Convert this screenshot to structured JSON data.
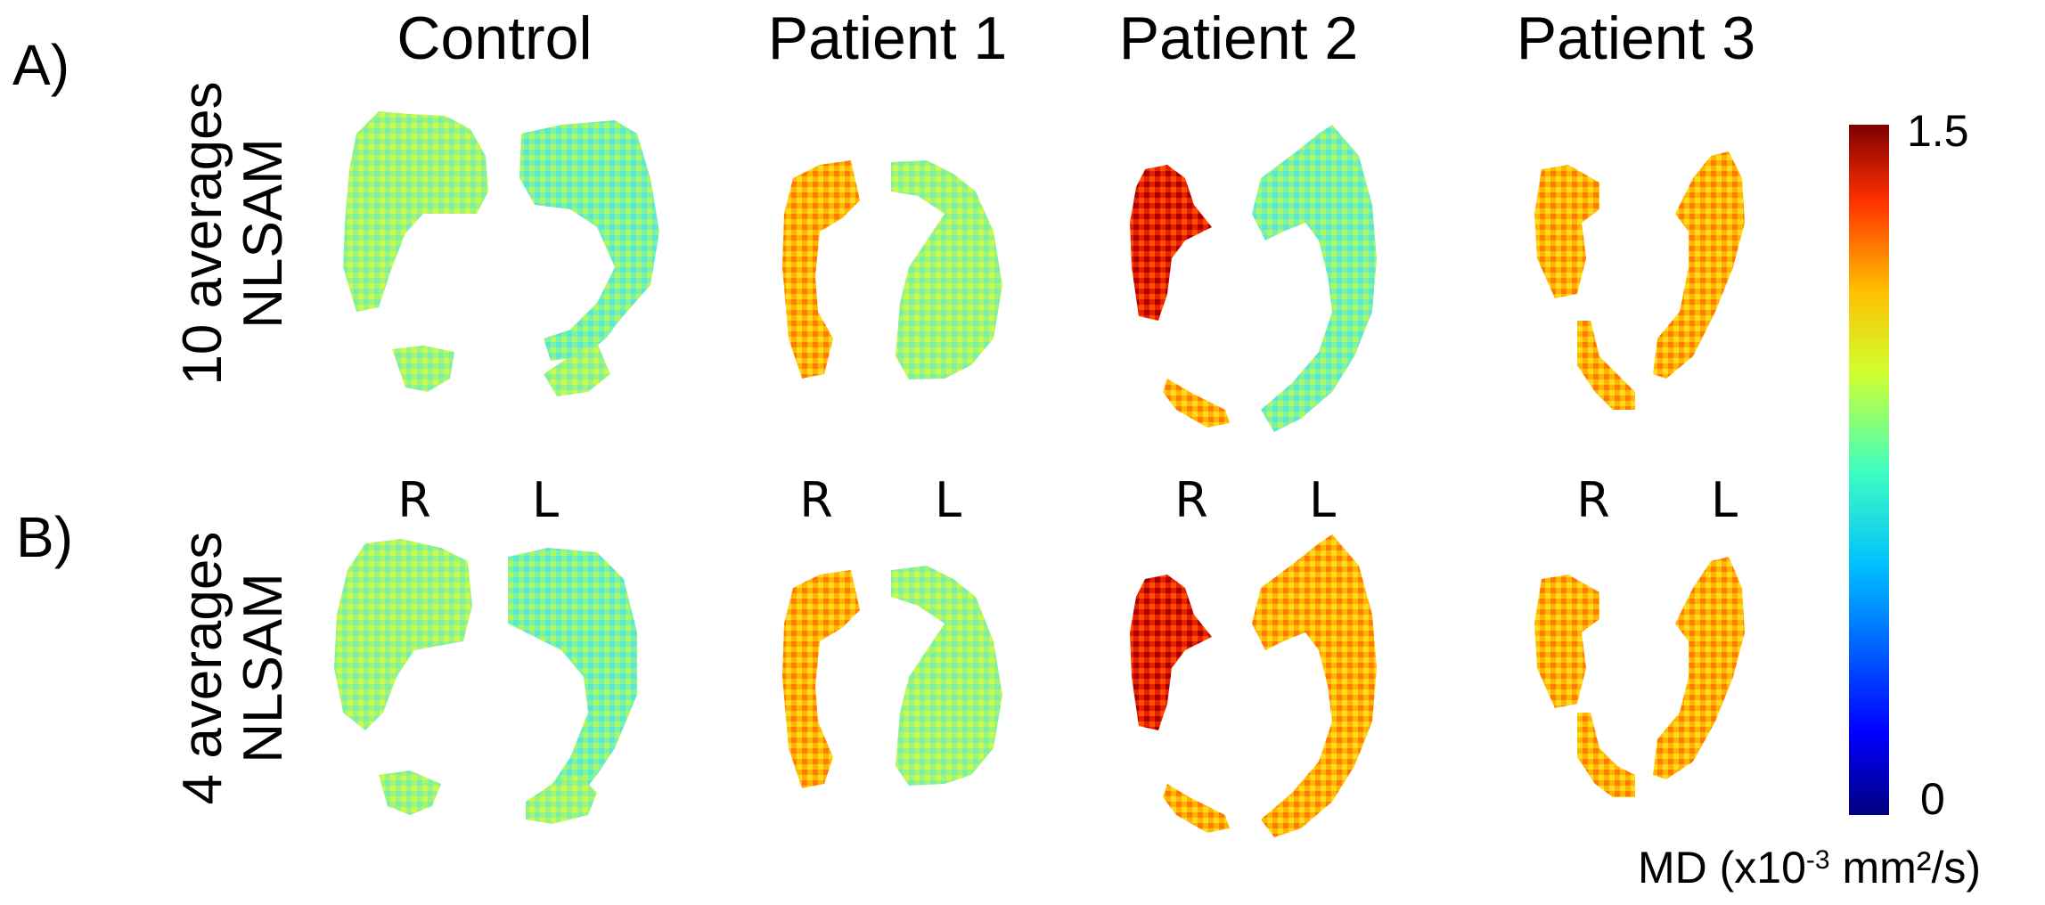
{
  "columns": [
    "Control",
    "Patient 1",
    "Patient 2",
    "Patient 3"
  ],
  "rows": [
    {
      "panel": "A)",
      "line1": "10 averages",
      "line2": "NLSAM"
    },
    {
      "panel": "B)",
      "line1": "4 averages",
      "line2": "NLSAM"
    }
  ],
  "hemisphere_labels": {
    "right": "R",
    "left": "L"
  },
  "colorbar": {
    "max_label": "1.5",
    "min_label": "0",
    "unit_prefix": "MD (x10",
    "unit_exp": "-3",
    "unit_suffix": " mm²/s)",
    "colormap": "jet",
    "colors": [
      "#00007f",
      "#0000ff",
      "#00bfff",
      "#40ffbf",
      "#d0ff30",
      "#ffbf00",
      "#ff3000",
      "#7f0000"
    ]
  }
}
